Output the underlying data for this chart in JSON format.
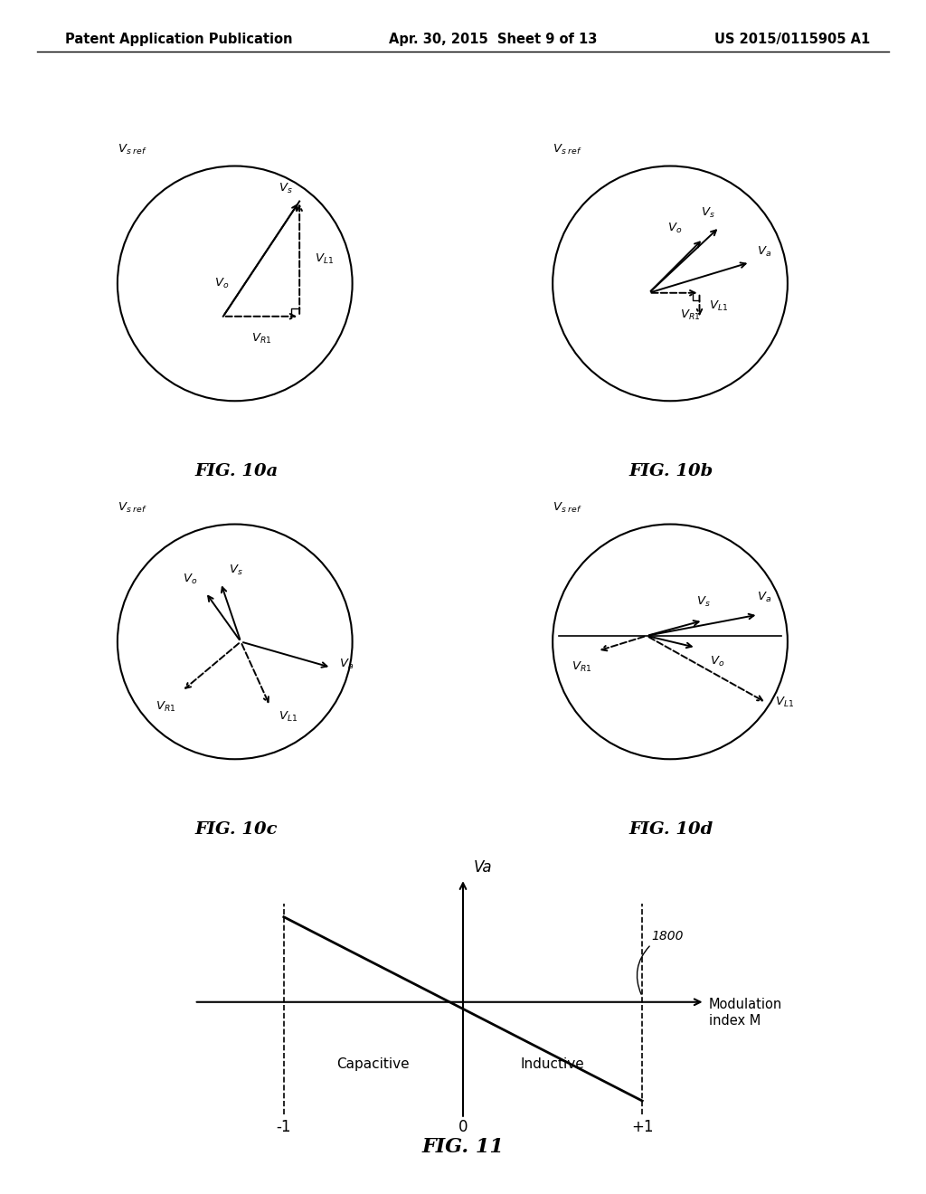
{
  "header_left": "Patent Application Publication",
  "header_center": "Apr. 30, 2015  Sheet 9 of 13",
  "header_right": "US 2015/0115905 A1",
  "fig_labels": [
    "FIG. 10a",
    "FIG. 10b",
    "FIG. 10c",
    "FIG. 10d",
    "FIG. 11"
  ],
  "background": "#ffffff",
  "graph_xlabel": "Modulation\nindex M",
  "graph_ylabel": "Va",
  "graph_capacitive": "Capacitive",
  "graph_inductive": "Inductive",
  "graph_1800": "1800"
}
